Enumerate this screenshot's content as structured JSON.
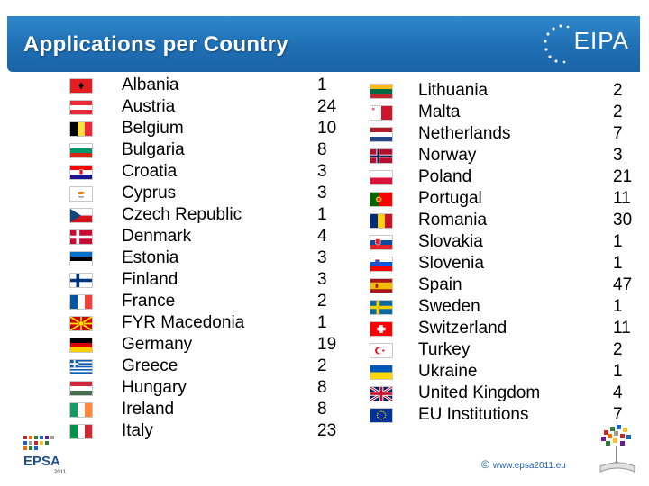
{
  "title": "Applications per Country",
  "logo_text": "EIPA",
  "epsa_text": "EPSA",
  "epsa_year": "2011",
  "footer_url": "www.epsa2011.eu",
  "footer_icon": "copyright-icon",
  "left_column": [
    {
      "country": "Albania",
      "count": "1",
      "flag": "albania"
    },
    {
      "country": "Austria",
      "count": "24",
      "flag": "austria"
    },
    {
      "country": "Belgium",
      "count": "10",
      "flag": "belgium"
    },
    {
      "country": "Bulgaria",
      "count": "8",
      "flag": "bulgaria"
    },
    {
      "country": "Croatia",
      "count": "3",
      "flag": "croatia"
    },
    {
      "country": "Cyprus",
      "count": "3",
      "flag": "cyprus"
    },
    {
      "country": "Czech Republic",
      "count": "1",
      "flag": "czech"
    },
    {
      "country": "Denmark",
      "count": "4",
      "flag": "denmark"
    },
    {
      "country": "Estonia",
      "count": "3",
      "flag": "estonia"
    },
    {
      "country": "Finland",
      "count": "3",
      "flag": "finland"
    },
    {
      "country": "France",
      "count": "2",
      "flag": "france"
    },
    {
      "country": "FYR Macedonia",
      "count": "1",
      "flag": "macedonia"
    },
    {
      "country": "Germany",
      "count": "19",
      "flag": "germany"
    },
    {
      "country": "Greece",
      "count": "2",
      "flag": "greece"
    },
    {
      "country": "Hungary",
      "count": "8",
      "flag": "hungary"
    },
    {
      "country": "Ireland",
      "count": "8",
      "flag": "ireland"
    },
    {
      "country": "Italy",
      "count": "23",
      "flag": "italy"
    }
  ],
  "right_column": [
    {
      "country": "Lithuania",
      "count": "2",
      "flag": "lithuania"
    },
    {
      "country": "Malta",
      "count": "2",
      "flag": "malta"
    },
    {
      "country": "Netherlands",
      "count": "7",
      "flag": "netherlands"
    },
    {
      "country": "Norway",
      "count": "3",
      "flag": "norway"
    },
    {
      "country": "Poland",
      "count": "21",
      "flag": "poland"
    },
    {
      "country": "Portugal",
      "count": "11",
      "flag": "portugal"
    },
    {
      "country": "Romania",
      "count": "30",
      "flag": "romania"
    },
    {
      "country": "Slovakia",
      "count": "1",
      "flag": "slovakia"
    },
    {
      "country": "Slovenia",
      "count": "1",
      "flag": "slovenia"
    },
    {
      "country": "Spain",
      "count": "47",
      "flag": "spain"
    },
    {
      "country": "Sweden",
      "count": "1",
      "flag": "sweden"
    },
    {
      "country": "Switzerland",
      "count": "11",
      "flag": "switzerland"
    },
    {
      "country": "Turkey",
      "count": "2",
      "flag": "turkey"
    },
    {
      "country": "Ukraine",
      "count": "1",
      "flag": "ukraine"
    },
    {
      "country": "United Kingdom",
      "count": "4",
      "flag": "uk"
    },
    {
      "country": "EU Institutions",
      "count": "7",
      "flag": "eu"
    }
  ]
}
